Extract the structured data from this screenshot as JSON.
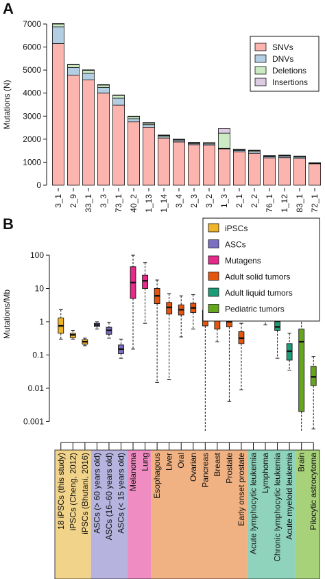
{
  "panel_labels": [
    "A",
    "B"
  ],
  "chart_data": [
    {
      "type": "bar",
      "panel": "A",
      "stacked": true,
      "categories": [
        "3_1",
        "2_9",
        "33_1",
        "3_3",
        "73_1",
        "40_2",
        "1_13",
        "1_14",
        "3_4",
        "2_3",
        "3_2",
        "1_3",
        "2_1",
        "2_2",
        "76_1",
        "1_12",
        "83_1",
        "72_1"
      ],
      "series": [
        {
          "name": "SNVs",
          "color": "#fbb4ae",
          "values": [
            6150,
            4780,
            4570,
            4000,
            3480,
            2750,
            2520,
            2050,
            1880,
            1760,
            1740,
            1580,
            1450,
            1390,
            1190,
            1200,
            1160,
            930
          ]
        },
        {
          "name": "DNVs",
          "color": "#b3cde3",
          "values": [
            730,
            330,
            290,
            250,
            300,
            140,
            110,
            60,
            60,
            50,
            50,
            20,
            60,
            70,
            50,
            60,
            60,
            20
          ]
        },
        {
          "name": "Deletions",
          "color": "#ccebc5",
          "values": [
            120,
            120,
            130,
            100,
            120,
            90,
            70,
            50,
            40,
            30,
            40,
            660,
            40,
            40,
            30,
            30,
            30,
            20
          ]
        },
        {
          "name": "Insertions",
          "color": "#decbe4",
          "values": [
            20,
            20,
            20,
            20,
            20,
            20,
            20,
            20,
            20,
            20,
            20,
            200,
            20,
            20,
            20,
            20,
            20,
            10
          ]
        }
      ],
      "xlabel": "",
      "ylabel": "Mutations (N)",
      "ylim": [
        0,
        7000
      ],
      "yticks": [
        0,
        1000,
        2000,
        3000,
        4000,
        5000,
        6000,
        7000
      ],
      "legend": "top-right",
      "grid": false
    },
    {
      "type": "box",
      "panel": "B",
      "ylabel": "Mutations/Mb",
      "yscale": "log",
      "ylim": [
        0.0005,
        100
      ],
      "yticks": [
        0.001,
        0.01,
        0.1,
        1,
        10,
        100
      ],
      "ytick_labels": [
        "0.001",
        "0.01",
        "0.1",
        "1",
        "10",
        "100"
      ],
      "legend": "top-right",
      "groups": [
        {
          "name": "iPSCs",
          "color": "#f0b429",
          "bg": "#f1d38a"
        },
        {
          "name": "ASCs",
          "color": "#7b6fc4",
          "bg": "#b7b3df"
        },
        {
          "name": "Mutagens",
          "color": "#e7298a",
          "bg": "#ef8cc2"
        },
        {
          "name": "Adult solid tumors",
          "color": "#e6550d",
          "bg": "#f0b183"
        },
        {
          "name": "Adult liquid tumors",
          "color": "#1b9e77",
          "bg": "#8fd3bd"
        },
        {
          "name": "Pediatric tumors",
          "color": "#66a61e",
          "bg": "#a8d27a"
        }
      ],
      "boxes": [
        {
          "label": "18 iPSCs (this study)",
          "group": 0,
          "min": 0.3,
          "q1": 0.45,
          "median": 0.75,
          "q3": 1.3,
          "max": 2.3
        },
        {
          "label": "iPSCs (Cheng, 2012)",
          "group": 0,
          "min": 0.3,
          "q1": 0.33,
          "median": 0.4,
          "q3": 0.45,
          "max": 0.55
        },
        {
          "label": "iPSCs (Bhutani, 2016)",
          "group": 0,
          "min": 0.19,
          "q1": 0.21,
          "median": 0.25,
          "q3": 0.29,
          "max": 0.32
        },
        {
          "label": "ASCs (> 60 years old)",
          "group": 1,
          "min": 0.6,
          "q1": 0.72,
          "median": 0.8,
          "q3": 0.9,
          "max": 1.0
        },
        {
          "label": "ASCs (16–60 years old)",
          "group": 1,
          "min": 0.32,
          "q1": 0.42,
          "median": 0.55,
          "q3": 0.68,
          "max": 0.95
        },
        {
          "label": "ASCs (< 15 years old)",
          "group": 1,
          "min": 0.08,
          "q1": 0.11,
          "median": 0.15,
          "q3": 0.2,
          "max": 0.3
        },
        {
          "label": "Melanoma",
          "group": 2,
          "min": 0.15,
          "q1": 5.0,
          "median": 15,
          "q3": 45,
          "max": 100
        },
        {
          "label": "Lung",
          "group": 2,
          "min": 0.9,
          "q1": 10,
          "median": 17,
          "q3": 25,
          "max": 60
        },
        {
          "label": "Esophagous",
          "group": 3,
          "min": 0.015,
          "q1": 3.5,
          "median": 6,
          "q3": 10,
          "max": 18
        },
        {
          "label": "Liver",
          "group": 3,
          "min": 0.018,
          "q1": 1.7,
          "median": 2.7,
          "q3": 3.8,
          "max": 7
        },
        {
          "label": "Oral",
          "group": 3,
          "min": 0.35,
          "q1": 1.6,
          "median": 2.3,
          "q3": 3.2,
          "max": 6
        },
        {
          "label": "Ovarian",
          "group": 3,
          "min": 0.6,
          "q1": 1.9,
          "median": 2.6,
          "q3": 3.6,
          "max": 6.5
        },
        {
          "label": "Pancreas",
          "group": 3,
          "min": 0.0003,
          "q1": 0.75,
          "median": 1.3,
          "q3": 2.2,
          "max": 4.5
        },
        {
          "label": "Breast",
          "group": 3,
          "min": 0.25,
          "q1": 0.6,
          "median": 1.2,
          "q3": 2.5,
          "max": 6
        },
        {
          "label": "Prostate",
          "group": 3,
          "min": 0.004,
          "q1": 0.7,
          "median": 1.0,
          "q3": 1.4,
          "max": 2.8
        },
        {
          "label": "Early onset prostate",
          "group": 3,
          "min": 0.009,
          "q1": 0.22,
          "median": 0.32,
          "q3": 0.5,
          "max": 0.9
        },
        {
          "label": "Acute lymphocytic leukemia",
          "group": 4,
          "min": 2.4,
          "q1": 2.5,
          "median": 2.6,
          "q3": 2.7,
          "max": 2.8
        },
        {
          "label": "Lymphoma",
          "group": 4,
          "min": 0.8,
          "q1": 1.2,
          "median": 2.1,
          "q3": 4.5,
          "max": 8
        },
        {
          "label": "Chronic lymphocytic leukemia",
          "group": 4,
          "min": 0.08,
          "q1": 0.55,
          "median": 0.7,
          "q3": 1.0,
          "max": 2.5
        },
        {
          "label": "Acute myeloid leukemia",
          "group": 4,
          "min": 0.035,
          "q1": 0.07,
          "median": 0.13,
          "q3": 0.22,
          "max": 0.45
        },
        {
          "label": "Brain",
          "group": 5,
          "min": 0.0003,
          "q1": 0.002,
          "median": 0.25,
          "q3": 0.6,
          "max": 1.6
        },
        {
          "label": "Pilocytic astrocytoma",
          "group": 5,
          "min": 0.0006,
          "q1": 0.012,
          "median": 0.022,
          "q3": 0.045,
          "max": 0.09
        }
      ]
    }
  ]
}
